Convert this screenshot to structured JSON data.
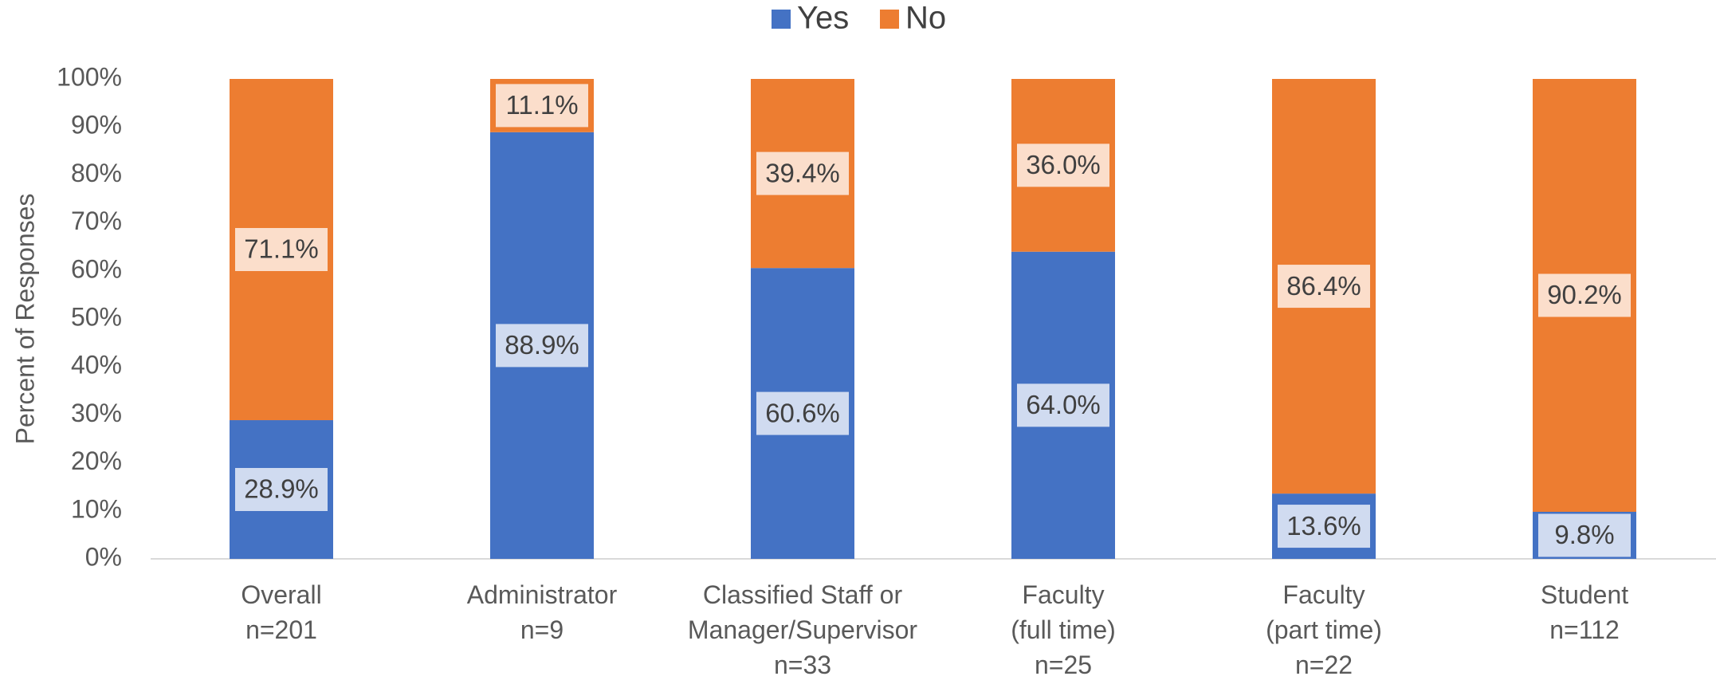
{
  "chart_data": {
    "type": "stacked_bar",
    "categories": [
      "Overall\nn=201",
      "Administrator\nn=9",
      "Classified Staff or\nManager/Supervisor\nn=33",
      "Faculty\n(full time)\nn=25",
      "Faculty\n(part time)\nn=22",
      "Student\nn=112"
    ],
    "series": [
      {
        "name": "Yes",
        "color": "#4472c4",
        "values": [
          28.9,
          88.9,
          60.6,
          64.0,
          13.6,
          9.8
        ],
        "value_labels": [
          "28.9%",
          "88.9%",
          "60.6%",
          "64.0%",
          "13.6%",
          "9.8%"
        ]
      },
      {
        "name": "No",
        "color": "#ed7d31",
        "values": [
          71.1,
          11.1,
          39.4,
          36.0,
          86.4,
          90.2
        ],
        "value_labels": [
          "71.1%",
          "11.1%",
          "39.4%",
          "36.0%",
          "86.4%",
          "90.2%"
        ]
      }
    ],
    "ylabel": "Percent of Responses",
    "ylim": [
      0,
      100
    ],
    "yticks": [
      {
        "value": 0,
        "label": "0%"
      },
      {
        "value": 10,
        "label": "10%"
      },
      {
        "value": 20,
        "label": "20%"
      },
      {
        "value": 30,
        "label": "30%"
      },
      {
        "value": 40,
        "label": "40%"
      },
      {
        "value": 50,
        "label": "50%"
      },
      {
        "value": 60,
        "label": "60%"
      },
      {
        "value": 70,
        "label": "70%"
      },
      {
        "value": 80,
        "label": "80%"
      },
      {
        "value": 90,
        "label": "90%"
      },
      {
        "value": 100,
        "label": "100%"
      }
    ],
    "legend": "top"
  }
}
